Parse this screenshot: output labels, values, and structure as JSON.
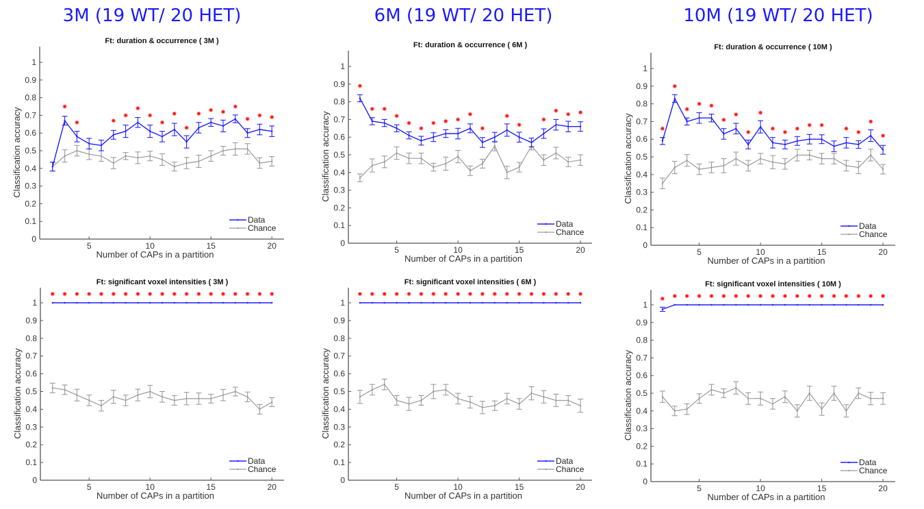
{
  "headers": [
    {
      "text": "3M (19 WT/ 20 HET)"
    },
    {
      "text": "6M (19 WT/ 20 HET)"
    },
    {
      "text": "10M (19 WT/ 20 HET)"
    }
  ],
  "colors": {
    "data": "#1f1fff",
    "chance": "#9a9a9a",
    "significance": "#ff1a1a",
    "header": "#1a1aff",
    "axis": "#555555"
  },
  "chart_data": [
    {
      "type": "line",
      "title": "Ft: duration & occurrence ( 3M )",
      "xlabel": "Number of CAPs in a partition",
      "ylabel": "Classification accuracy",
      "xlim": [
        1,
        21
      ],
      "ylim": [
        0,
        1.08
      ],
      "xticks": [
        5,
        10,
        15,
        20
      ],
      "yticks": [
        0,
        0.1,
        0.2,
        0.3,
        0.4,
        0.5,
        0.6,
        0.7,
        0.8,
        0.9,
        1
      ],
      "ytick_labels": [
        "0",
        "0.1",
        "0.2",
        "0.3",
        "0.4",
        "0.5",
        "0.6",
        "0.7",
        "0.8",
        "0.9",
        "1"
      ],
      "grid": false,
      "legend": {
        "position": "bottom-right",
        "entries": [
          "Data",
          "Chance"
        ]
      },
      "x": [
        2,
        3,
        4,
        5,
        6,
        7,
        8,
        9,
        10,
        11,
        12,
        13,
        14,
        15,
        16,
        17,
        18,
        19,
        20
      ],
      "series": [
        {
          "name": "Data",
          "values": [
            0.41,
            0.67,
            0.58,
            0.54,
            0.53,
            0.59,
            0.61,
            0.66,
            0.61,
            0.58,
            0.62,
            0.55,
            0.63,
            0.66,
            0.64,
            0.68,
            0.6,
            0.62,
            0.61
          ],
          "errors": [
            0.025,
            0.025,
            0.03,
            0.03,
            0.03,
            0.025,
            0.035,
            0.028,
            0.035,
            0.03,
            0.035,
            0.035,
            0.03,
            0.022,
            0.033,
            0.022,
            0.025,
            0.03,
            0.03
          ]
        },
        {
          "name": "Chance",
          "values": [
            0.41,
            0.47,
            0.5,
            0.48,
            0.47,
            0.43,
            0.47,
            0.46,
            0.47,
            0.45,
            0.41,
            0.43,
            0.44,
            0.47,
            0.5,
            0.51,
            0.51,
            0.43,
            0.44
          ],
          "errors": [
            0.025,
            0.035,
            0.03,
            0.03,
            0.03,
            0.032,
            0.02,
            0.033,
            0.027,
            0.033,
            0.025,
            0.032,
            0.035,
            0.03,
            0.025,
            0.035,
            0.03,
            0.03,
            0.027
          ]
        }
      ],
      "significant_x": [
        3,
        4,
        7,
        8,
        9,
        10,
        11,
        12,
        13,
        14,
        15,
        16,
        17,
        18,
        19,
        20
      ],
      "significance_marker_y": [
        null,
        0.75,
        0.66,
        null,
        null,
        0.67,
        0.7,
        0.74,
        0.7,
        0.66,
        0.71,
        0.63,
        0.71,
        0.73,
        0.72,
        0.75,
        0.68,
        0.7,
        0.69
      ]
    },
    {
      "type": "line",
      "title": "Ft: duration & occurrence ( 6M )",
      "xlabel": "Number of CAPs in a partition",
      "ylabel": "Classification accuracy",
      "xlim": [
        1,
        21
      ],
      "ylim": [
        0,
        1.08
      ],
      "xticks": [
        5,
        10,
        15,
        20
      ],
      "yticks": [
        0,
        0.1,
        0.2,
        0.3,
        0.4,
        0.5,
        0.6,
        0.7,
        0.8,
        0.9,
        1
      ],
      "ytick_labels": [
        "0",
        "0.1",
        "0.2",
        "0.3",
        "0.4",
        "0.5",
        "0.6",
        "0.7",
        "0.8",
        "0.9",
        "1"
      ],
      "grid": false,
      "legend": {
        "position": "bottom-right",
        "entries": [
          "Data",
          "Chance"
        ]
      },
      "x": [
        2,
        3,
        4,
        5,
        6,
        7,
        8,
        9,
        10,
        11,
        12,
        13,
        14,
        15,
        16,
        17,
        18,
        19,
        20
      ],
      "series": [
        {
          "name": "Data",
          "values": [
            0.82,
            0.69,
            0.68,
            0.65,
            0.61,
            0.58,
            0.6,
            0.62,
            0.62,
            0.65,
            0.57,
            0.6,
            0.64,
            0.6,
            0.57,
            0.62,
            0.67,
            0.66,
            0.66
          ],
          "errors": [
            0.02,
            0.02,
            0.02,
            0.02,
            0.02,
            0.025,
            0.025,
            0.022,
            0.03,
            0.025,
            0.028,
            0.027,
            0.035,
            0.028,
            0.025,
            0.027,
            0.03,
            0.03,
            0.027
          ]
        },
        {
          "name": "Chance",
          "values": [
            0.37,
            0.44,
            0.46,
            0.51,
            0.48,
            0.48,
            0.43,
            0.45,
            0.49,
            0.41,
            0.45,
            0.55,
            0.4,
            0.43,
            0.55,
            0.47,
            0.51,
            0.46,
            0.47
          ],
          "errors": [
            0.022,
            0.037,
            0.033,
            0.035,
            0.03,
            0.03,
            0.022,
            0.037,
            0.035,
            0.027,
            0.025,
            0.027,
            0.035,
            0.027,
            0.022,
            0.03,
            0.033,
            0.027,
            0.03
          ]
        }
      ],
      "significant_x": [
        2,
        3,
        4,
        5,
        6,
        7,
        8,
        9,
        10,
        11,
        12,
        14,
        15,
        17,
        18,
        19,
        20
      ],
      "significance_marker_y": [
        0.89,
        0.76,
        0.76,
        0.72,
        0.68,
        0.65,
        0.68,
        0.69,
        0.7,
        0.73,
        0.65,
        null,
        0.72,
        0.67,
        null,
        0.7,
        0.75,
        0.73,
        0.74
      ]
    },
    {
      "type": "line",
      "title": "Ft: duration & occurrence ( 10M )",
      "xlabel": "Number of CAPs in a partition",
      "ylabel": "Classification accuracy",
      "xlim": [
        1,
        21
      ],
      "ylim": [
        0,
        1.08
      ],
      "xticks": [
        5,
        10,
        15,
        20
      ],
      "yticks": [
        0,
        0.1,
        0.2,
        0.3,
        0.4,
        0.5,
        0.6,
        0.7,
        0.8,
        0.9,
        1
      ],
      "ytick_labels": [
        "0",
        "0.1",
        "0.2",
        "0.3",
        "0.4",
        "0.5",
        "0.6",
        "0.7",
        "0.8",
        "0.9",
        "1"
      ],
      "grid": false,
      "legend": {
        "position": "bottom-right",
        "entries": [
          "Data",
          "Chance"
        ]
      },
      "x": [
        2,
        3,
        4,
        5,
        6,
        7,
        8,
        9,
        10,
        11,
        12,
        13,
        14,
        15,
        16,
        17,
        18,
        19,
        20
      ],
      "series": [
        {
          "name": "Data",
          "values": [
            0.59,
            0.83,
            0.7,
            0.72,
            0.72,
            0.63,
            0.66,
            0.57,
            0.67,
            0.58,
            0.57,
            0.59,
            0.6,
            0.6,
            0.56,
            0.58,
            0.57,
            0.62,
            0.54
          ],
          "errors": [
            0.02,
            0.022,
            0.02,
            0.03,
            0.022,
            0.03,
            0.03,
            0.025,
            0.035,
            0.03,
            0.025,
            0.025,
            0.027,
            0.025,
            0.03,
            0.03,
            0.022,
            0.033,
            0.025
          ]
        },
        {
          "name": "Chance",
          "values": [
            0.35,
            0.44,
            0.48,
            0.43,
            0.44,
            0.45,
            0.49,
            0.45,
            0.49,
            0.47,
            0.46,
            0.51,
            0.51,
            0.49,
            0.49,
            0.45,
            0.44,
            0.51,
            0.43
          ],
          "errors": [
            0.03,
            0.035,
            0.033,
            0.03,
            0.03,
            0.04,
            0.037,
            0.03,
            0.03,
            0.037,
            0.03,
            0.033,
            0.027,
            0.03,
            0.03,
            0.03,
            0.035,
            0.033,
            0.027
          ]
        }
      ],
      "significant_x": [
        2,
        3,
        4,
        5,
        6,
        7,
        8,
        9,
        10,
        11,
        12,
        13,
        14,
        15,
        17,
        18,
        19,
        20
      ],
      "significance_marker_y": [
        0.66,
        0.9,
        0.77,
        0.8,
        0.79,
        0.71,
        0.74,
        0.64,
        0.75,
        0.66,
        0.64,
        0.66,
        0.68,
        0.68,
        null,
        0.66,
        0.64,
        0.7,
        0.62
      ]
    },
    {
      "type": "line",
      "title": "Ft: significant voxel intensities ( 3M )",
      "xlabel": "Number of CAPs in a partition",
      "ylabel": "Classification accuracy",
      "xlim": [
        1,
        21
      ],
      "ylim": [
        0,
        1.08
      ],
      "xticks": [
        5,
        10,
        15,
        20
      ],
      "yticks": [
        0,
        0.1,
        0.2,
        0.3,
        0.4,
        0.5,
        0.6,
        0.7,
        0.8,
        0.9,
        1
      ],
      "ytick_labels": [
        "0",
        "0.1",
        "0.2",
        "0.3",
        "0.4",
        "0.5",
        "0.6",
        "0.7",
        "0.8",
        "0.9",
        "1"
      ],
      "grid": false,
      "legend": {
        "position": "bottom-right",
        "entries": [
          "Data",
          "Chance"
        ]
      },
      "x": [
        2,
        3,
        4,
        5,
        6,
        7,
        8,
        9,
        10,
        11,
        12,
        13,
        14,
        15,
        16,
        17,
        18,
        19,
        20
      ],
      "series": [
        {
          "name": "Data",
          "values": [
            1,
            1,
            1,
            1,
            1,
            1,
            1,
            1,
            1,
            1,
            1,
            1,
            1,
            1,
            1,
            1,
            1,
            1,
            1
          ],
          "errors": [
            0,
            0,
            0,
            0,
            0,
            0,
            0,
            0,
            0,
            0,
            0,
            0,
            0,
            0,
            0,
            0,
            0,
            0,
            0
          ]
        },
        {
          "name": "Chance",
          "values": [
            0.52,
            0.51,
            0.48,
            0.45,
            0.42,
            0.47,
            0.45,
            0.48,
            0.5,
            0.47,
            0.45,
            0.46,
            0.46,
            0.46,
            0.48,
            0.5,
            0.47,
            0.4,
            0.44
          ],
          "errors": [
            0.027,
            0.027,
            0.033,
            0.03,
            0.03,
            0.037,
            0.03,
            0.033,
            0.035,
            0.03,
            0.027,
            0.035,
            0.032,
            0.025,
            0.032,
            0.025,
            0.027,
            0.027,
            0.025
          ]
        }
      ],
      "significant_x": [
        2,
        3,
        4,
        5,
        6,
        7,
        8,
        9,
        10,
        11,
        12,
        13,
        14,
        15,
        16,
        17,
        18,
        19,
        20
      ],
      "significance_marker_y": [
        1.05,
        1.05,
        1.05,
        1.05,
        1.05,
        1.05,
        1.05,
        1.05,
        1.05,
        1.05,
        1.05,
        1.05,
        1.05,
        1.05,
        1.05,
        1.05,
        1.05,
        1.05,
        1.05
      ]
    },
    {
      "type": "line",
      "title": "Ft: significant voxel intensities ( 6M )",
      "xlabel": "Number of CAPs in a partition",
      "ylabel": "Classification accuracy",
      "xlim": [
        1,
        21
      ],
      "ylim": [
        0,
        1.08
      ],
      "xticks": [
        5,
        10,
        15,
        20
      ],
      "yticks": [
        0,
        0.1,
        0.2,
        0.3,
        0.4,
        0.5,
        0.6,
        0.7,
        0.8,
        0.9,
        1
      ],
      "ytick_labels": [
        "0",
        "0.1",
        "0.2",
        "0.3",
        "0.4",
        "0.5",
        "0.6",
        "0.7",
        "0.8",
        "0.9",
        "1"
      ],
      "grid": false,
      "legend": {
        "position": "bottom-right",
        "entries": [
          "Data",
          "Chance"
        ]
      },
      "x": [
        2,
        3,
        4,
        5,
        6,
        7,
        8,
        9,
        10,
        11,
        12,
        13,
        14,
        15,
        16,
        17,
        18,
        19,
        20
      ],
      "series": [
        {
          "name": "Data",
          "values": [
            1,
            1,
            1,
            1,
            1,
            1,
            1,
            1,
            1,
            1,
            1,
            1,
            1,
            1,
            1,
            1,
            1,
            1,
            1
          ],
          "errors": [
            0,
            0,
            0,
            0,
            0,
            0,
            0,
            0,
            0,
            0,
            0,
            0,
            0,
            0,
            0,
            0,
            0,
            0,
            0
          ]
        },
        {
          "name": "Chance",
          "values": [
            0.47,
            0.51,
            0.54,
            0.45,
            0.43,
            0.45,
            0.5,
            0.51,
            0.46,
            0.44,
            0.41,
            0.42,
            0.46,
            0.43,
            0.49,
            0.47,
            0.45,
            0.45,
            0.42
          ],
          "errors": [
            0.037,
            0.03,
            0.03,
            0.027,
            0.037,
            0.027,
            0.04,
            0.03,
            0.03,
            0.033,
            0.035,
            0.027,
            0.03,
            0.03,
            0.037,
            0.035,
            0.035,
            0.027,
            0.037
          ]
        }
      ],
      "significant_x": [
        2,
        3,
        4,
        5,
        6,
        7,
        8,
        9,
        10,
        11,
        12,
        13,
        14,
        15,
        16,
        17,
        18,
        19,
        20
      ],
      "significance_marker_y": [
        1.05,
        1.05,
        1.05,
        1.05,
        1.05,
        1.05,
        1.05,
        1.05,
        1.05,
        1.05,
        1.05,
        1.05,
        1.05,
        1.05,
        1.05,
        1.05,
        1.05,
        1.05,
        1.05
      ]
    },
    {
      "type": "line",
      "title": "Ft: significant voxel intensities ( 10M )",
      "xlabel": "Number of CAPs in a partition",
      "ylabel": "Classification accuracy",
      "xlim": [
        1,
        21
      ],
      "ylim": [
        0,
        1.08
      ],
      "xticks": [
        5,
        10,
        15,
        20
      ],
      "yticks": [
        0,
        0.1,
        0.2,
        0.3,
        0.4,
        0.5,
        0.6,
        0.7,
        0.8,
        0.9,
        1
      ],
      "ytick_labels": [
        "0",
        "0.1",
        "0.2",
        "0.3",
        "0.4",
        "0.5",
        "0.6",
        "0.7",
        "0.8",
        "0.9",
        "1"
      ],
      "grid": false,
      "legend": {
        "position": "bottom-right",
        "entries": [
          "Data",
          "Chance"
        ]
      },
      "x": [
        2,
        3,
        4,
        5,
        6,
        7,
        8,
        9,
        10,
        11,
        12,
        13,
        14,
        15,
        16,
        17,
        18,
        19,
        20
      ],
      "series": [
        {
          "name": "Data",
          "values": [
            0.975,
            1,
            1,
            1,
            1,
            1,
            1,
            1,
            1,
            1,
            1,
            1,
            1,
            1,
            1,
            1,
            1,
            1,
            1
          ],
          "errors": [
            0.012,
            0,
            0,
            0,
            0,
            0,
            0,
            0,
            0,
            0,
            0,
            0,
            0,
            0,
            0,
            0,
            0,
            0,
            0
          ]
        },
        {
          "name": "Chance",
          "values": [
            0.48,
            0.4,
            0.41,
            0.47,
            0.52,
            0.5,
            0.53,
            0.47,
            0.47,
            0.44,
            0.48,
            0.4,
            0.5,
            0.41,
            0.5,
            0.4,
            0.5,
            0.47,
            0.47
          ],
          "errors": [
            0.032,
            0.027,
            0.03,
            0.027,
            0.03,
            0.025,
            0.035,
            0.033,
            0.037,
            0.03,
            0.033,
            0.035,
            0.04,
            0.035,
            0.04,
            0.035,
            0.03,
            0.035,
            0.033
          ]
        }
      ],
      "significant_x": [
        2,
        3,
        4,
        5,
        6,
        7,
        8,
        9,
        10,
        11,
        12,
        13,
        14,
        15,
        16,
        17,
        18,
        19,
        20
      ],
      "significance_marker_y": [
        1.035,
        1.05,
        1.05,
        1.05,
        1.05,
        1.05,
        1.05,
        1.05,
        1.05,
        1.05,
        1.05,
        1.05,
        1.05,
        1.05,
        1.05,
        1.05,
        1.05,
        1.05,
        1.05
      ]
    }
  ]
}
